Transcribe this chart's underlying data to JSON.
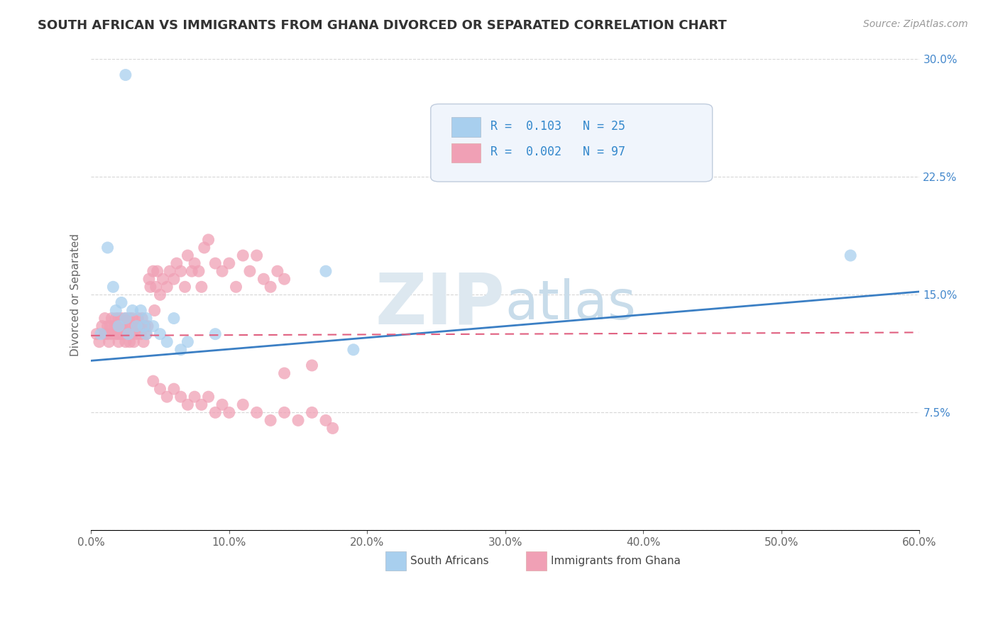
{
  "title": "SOUTH AFRICAN VS IMMIGRANTS FROM GHANA DIVORCED OR SEPARATED CORRELATION CHART",
  "source_text": "Source: ZipAtlas.com",
  "ylabel": "Divorced or Separated",
  "xlim": [
    0,
    0.6
  ],
  "ylim": [
    0,
    0.3
  ],
  "color_blue": "#A8CFEE",
  "color_pink": "#F0A0B5",
  "line_color_blue": "#3B7FC4",
  "line_color_pink": "#E06080",
  "legend_label1": "South Africans",
  "legend_label2": "Immigrants from Ghana",
  "blue_trend_x0": 0.0,
  "blue_trend_y0": 0.108,
  "blue_trend_x1": 0.6,
  "blue_trend_y1": 0.152,
  "pink_trend_x0": 0.0,
  "pink_trend_y0": 0.124,
  "pink_trend_x1": 0.6,
  "pink_trend_y1": 0.126,
  "blue_x": [
    0.007,
    0.012,
    0.016,
    0.018,
    0.02,
    0.022,
    0.025,
    0.027,
    0.03,
    0.033,
    0.036,
    0.038,
    0.04,
    0.04,
    0.045,
    0.05,
    0.055,
    0.06,
    0.065,
    0.07,
    0.09,
    0.17,
    0.19,
    0.55,
    0.025
  ],
  "blue_y": [
    0.125,
    0.18,
    0.155,
    0.14,
    0.13,
    0.145,
    0.135,
    0.125,
    0.14,
    0.13,
    0.14,
    0.13,
    0.135,
    0.125,
    0.13,
    0.125,
    0.12,
    0.135,
    0.115,
    0.12,
    0.125,
    0.165,
    0.115,
    0.175,
    0.29
  ],
  "pink_x": [
    0.004,
    0.006,
    0.008,
    0.01,
    0.01,
    0.012,
    0.012,
    0.013,
    0.014,
    0.015,
    0.015,
    0.017,
    0.018,
    0.018,
    0.019,
    0.02,
    0.02,
    0.02,
    0.021,
    0.022,
    0.022,
    0.023,
    0.024,
    0.025,
    0.025,
    0.026,
    0.027,
    0.028,
    0.028,
    0.029,
    0.03,
    0.03,
    0.031,
    0.032,
    0.033,
    0.034,
    0.035,
    0.036,
    0.037,
    0.038,
    0.039,
    0.04,
    0.041,
    0.042,
    0.043,
    0.045,
    0.046,
    0.047,
    0.048,
    0.05,
    0.052,
    0.055,
    0.057,
    0.06,
    0.062,
    0.065,
    0.068,
    0.07,
    0.073,
    0.075,
    0.078,
    0.08,
    0.082,
    0.085,
    0.09,
    0.095,
    0.1,
    0.105,
    0.11,
    0.115,
    0.12,
    0.125,
    0.13,
    0.135,
    0.14,
    0.045,
    0.05,
    0.055,
    0.06,
    0.065,
    0.07,
    0.075,
    0.08,
    0.085,
    0.09,
    0.095,
    0.1,
    0.11,
    0.12,
    0.13,
    0.14,
    0.15,
    0.16,
    0.17,
    0.175,
    0.16,
    0.14
  ],
  "pink_y": [
    0.125,
    0.12,
    0.13,
    0.125,
    0.135,
    0.13,
    0.125,
    0.12,
    0.13,
    0.125,
    0.135,
    0.13,
    0.125,
    0.135,
    0.13,
    0.125,
    0.135,
    0.12,
    0.13,
    0.125,
    0.135,
    0.13,
    0.125,
    0.135,
    0.12,
    0.13,
    0.125,
    0.135,
    0.12,
    0.13,
    0.125,
    0.135,
    0.12,
    0.13,
    0.125,
    0.135,
    0.13,
    0.125,
    0.135,
    0.12,
    0.13,
    0.125,
    0.13,
    0.16,
    0.155,
    0.165,
    0.14,
    0.155,
    0.165,
    0.15,
    0.16,
    0.155,
    0.165,
    0.16,
    0.17,
    0.165,
    0.155,
    0.175,
    0.165,
    0.17,
    0.165,
    0.155,
    0.18,
    0.185,
    0.17,
    0.165,
    0.17,
    0.155,
    0.175,
    0.165,
    0.175,
    0.16,
    0.155,
    0.165,
    0.16,
    0.095,
    0.09,
    0.085,
    0.09,
    0.085,
    0.08,
    0.085,
    0.08,
    0.085,
    0.075,
    0.08,
    0.075,
    0.08,
    0.075,
    0.07,
    0.075,
    0.07,
    0.075,
    0.07,
    0.065,
    0.105,
    0.1
  ]
}
